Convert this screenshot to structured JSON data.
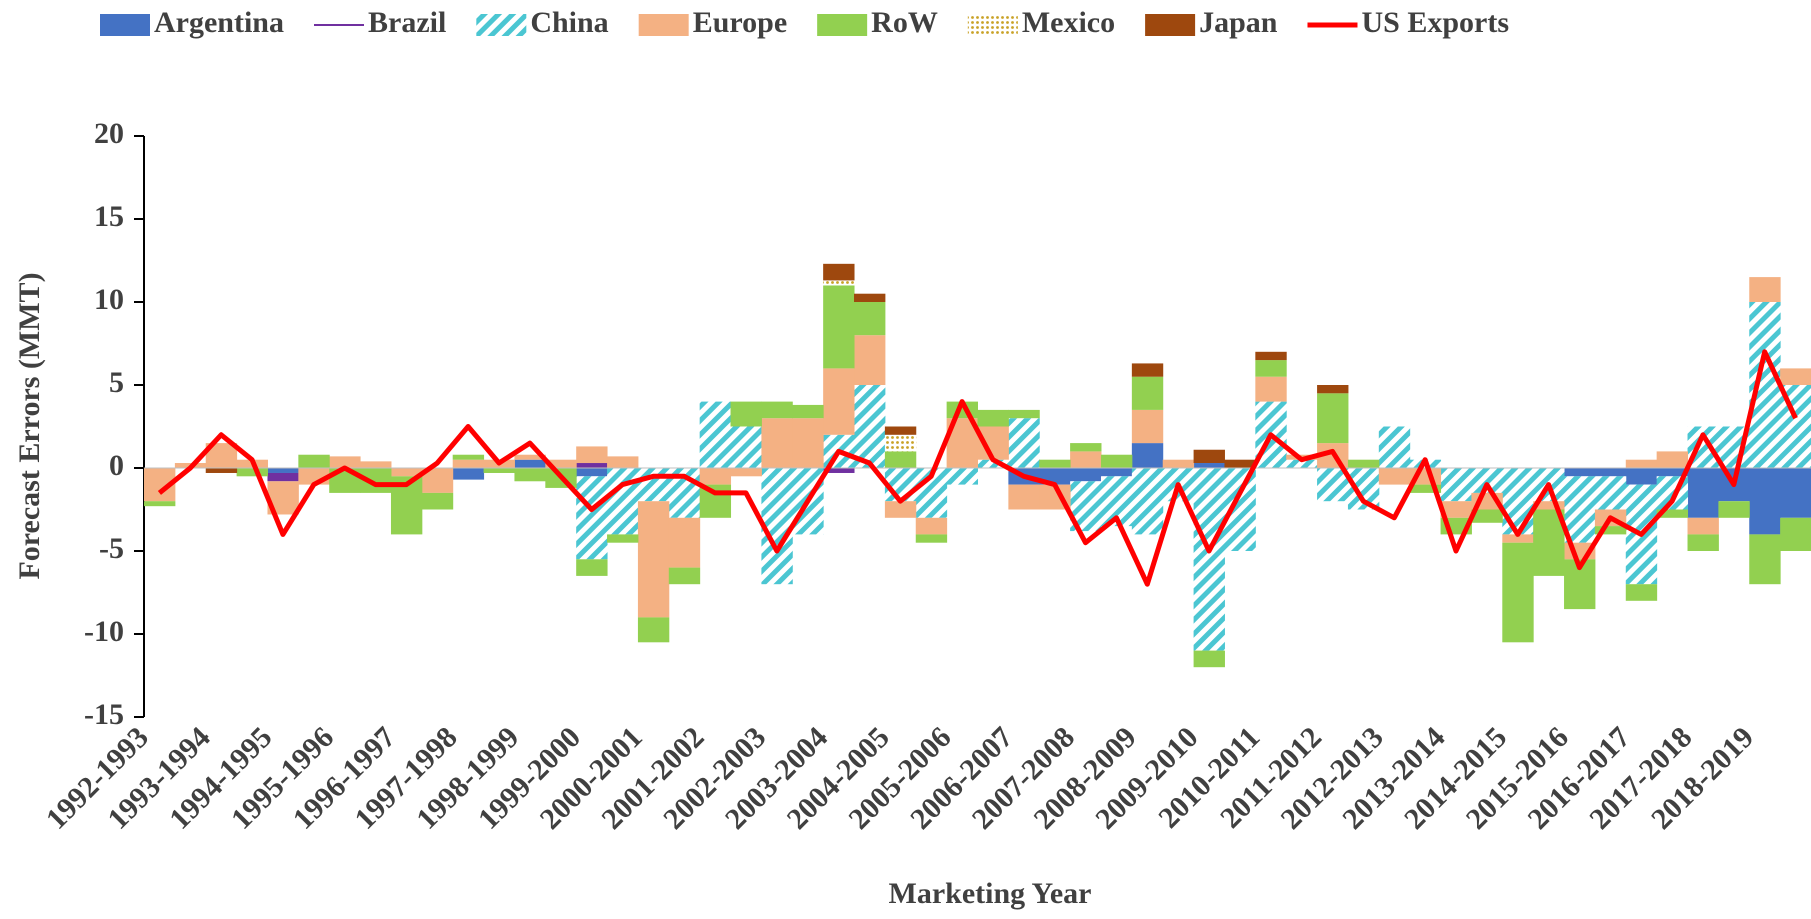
{
  "chart_data": {
    "type": "bar",
    "stacked": true,
    "ylabel": "Forecast Errors (MMT)",
    "xlabel": "Marketing Year",
    "categories": [
      "1992-1993",
      null,
      "1993-1994",
      null,
      "1994-1995",
      null,
      "1995-1996",
      null,
      "1996-1997",
      null,
      "1997-1998",
      null,
      "1998-1999",
      null,
      "1999-2000",
      null,
      "2000-2001",
      null,
      "2001-2002",
      null,
      "2002-2003",
      null,
      "2003-2004",
      null,
      "2004-2005",
      null,
      "2005-2006",
      null,
      "2006-2007",
      null,
      "2007-2008",
      null,
      "2008-2009",
      null,
      "2009-2010",
      null,
      "2010-2011",
      null,
      "2011-2012",
      null,
      "2012-2013",
      null,
      "2013-2014",
      null,
      "2014-2015",
      null,
      "2015-2016",
      null,
      "2016-2017",
      null,
      "2017-2018",
      null,
      "2018-2019",
      null
    ],
    "ylim": [
      -15,
      20
    ],
    "yticks": [
      -15,
      -10,
      -5,
      0,
      5,
      10,
      15,
      20
    ],
    "series": [
      {
        "name": "Argentina",
        "color": "#4472c4",
        "values": [
          0,
          0,
          0,
          0,
          -0.3,
          0,
          0,
          0,
          0,
          0,
          -0.7,
          0,
          0.5,
          0,
          -0.5,
          0,
          0,
          0,
          0,
          0,
          0,
          0,
          0,
          0,
          0,
          0,
          0,
          0,
          -1,
          -1,
          -0.8,
          -0.5,
          1.5,
          0,
          0.3,
          0,
          0,
          0,
          0,
          0,
          0,
          0,
          0,
          0,
          0,
          0,
          -0.5,
          -0.5,
          -1,
          -0.5,
          -3,
          -2,
          -4,
          -3
        ]
      },
      {
        "name": "Brazil",
        "color": "#7030a0",
        "legend_symbol": "line",
        "values": [
          0,
          0,
          0,
          0,
          -0.5,
          0,
          0,
          0,
          0,
          0,
          0,
          0,
          0,
          0,
          0.3,
          0,
          0,
          0,
          0,
          0,
          0,
          0,
          -0.3,
          0,
          0,
          0,
          0,
          0,
          0,
          0,
          0,
          0,
          0,
          0,
          0,
          0,
          0,
          0,
          0,
          0,
          0,
          0,
          0,
          0,
          0,
          0,
          0,
          0,
          0,
          0,
          0,
          0,
          0,
          0
        ]
      },
      {
        "name": "China",
        "color": "#4bc6d2",
        "pattern": "hatch",
        "values": [
          0,
          0,
          0,
          0,
          0,
          0,
          0,
          0,
          0,
          0,
          0,
          0,
          0,
          0,
          -5,
          -4,
          -2,
          -3,
          4,
          2.5,
          -7,
          -4,
          2,
          5,
          -2,
          -3,
          -1,
          0.5,
          3,
          0,
          -3,
          -3,
          -4,
          -2,
          -11,
          -5,
          4,
          0.5,
          -2,
          -2.5,
          2.5,
          0.5,
          -2,
          -1.5,
          -4,
          -2,
          -4,
          -2,
          -6,
          -2,
          2.5,
          2.5,
          10,
          5
        ]
      },
      {
        "name": "Europe",
        "color": "#f4b183",
        "values": [
          -2,
          0.3,
          1.5,
          0.5,
          -2,
          -1,
          0.7,
          0.4,
          -0.5,
          -1.5,
          0.5,
          0.5,
          0.3,
          0.5,
          1,
          0.7,
          -7,
          -3,
          -1,
          -0.5,
          3,
          3,
          4,
          3,
          -1,
          -1,
          3,
          2,
          -1.5,
          -1.5,
          1,
          0,
          2,
          0.5,
          0,
          0,
          1.5,
          0.3,
          1.5,
          0,
          -1,
          -1,
          -1,
          -1,
          -0.5,
          -0.5,
          -1,
          -1,
          0.5,
          1,
          -1,
          0,
          1.5,
          1
        ]
      },
      {
        "name": "RoW",
        "color": "#92d050",
        "values": [
          -0.3,
          0,
          0,
          -0.5,
          0,
          0.8,
          -1.5,
          -1.5,
          -3.5,
          -1,
          0.3,
          -0.3,
          -0.8,
          -1.2,
          -1,
          -0.5,
          -1.5,
          -1,
          -2,
          1.5,
          1,
          0.8,
          5,
          2,
          1,
          -0.5,
          1,
          1,
          0.5,
          0.5,
          0.5,
          0.8,
          2,
          0,
          -1,
          0,
          1,
          0,
          3,
          0.5,
          0,
          -0.5,
          -1,
          -0.8,
          -6,
          -4,
          -3,
          -0.5,
          -1,
          -0.5,
          -1,
          -1,
          -3,
          -2
        ]
      },
      {
        "name": "Mexico",
        "color": "#c9a227",
        "pattern": "dots",
        "values": [
          0,
          0,
          0,
          0,
          0,
          0,
          0,
          0,
          0,
          0,
          0,
          0,
          0,
          0,
          0,
          0,
          0,
          0,
          0,
          0,
          0,
          0,
          0.3,
          0,
          1,
          0,
          0,
          0,
          0,
          0,
          0,
          0,
          0,
          0,
          0,
          0,
          0,
          0,
          0,
          0,
          0,
          0,
          0,
          0,
          0,
          0,
          0,
          0,
          0,
          0,
          0,
          0,
          0,
          0
        ]
      },
      {
        "name": "Japan",
        "color": "#9e480e",
        "values": [
          0,
          0,
          -0.3,
          0,
          0,
          0,
          0,
          0,
          0,
          0,
          0,
          0,
          0,
          0,
          0,
          0,
          0,
          0,
          0,
          0,
          0,
          0,
          1,
          0.5,
          0.5,
          0,
          0,
          0,
          0,
          0,
          0,
          0,
          0.8,
          0,
          0.8,
          0.5,
          0.5,
          0,
          0.5,
          0,
          0,
          0,
          0,
          0,
          0,
          0,
          0,
          0,
          0,
          0,
          0,
          0,
          0,
          0
        ]
      },
      {
        "name": "US Exports",
        "color": "#ff0000",
        "kind": "line",
        "values": [
          -1.5,
          0,
          2,
          0.5,
          -4,
          -1,
          0,
          -1,
          -1,
          0.3,
          2.5,
          0.3,
          1.5,
          -0.5,
          -2.5,
          -1,
          -0.5,
          -0.5,
          -1.5,
          -1.5,
          -5,
          -2,
          1,
          0.3,
          -2,
          -0.5,
          4,
          0.5,
          -0.5,
          -1,
          -4.5,
          -3,
          -7,
          -1,
          -5,
          -1.5,
          2,
          0.5,
          1,
          -2,
          -3,
          0.5,
          -5,
          -1,
          -4,
          -1,
          -6,
          -3,
          -4,
          -2,
          2,
          -1,
          7,
          3
        ]
      }
    ]
  }
}
